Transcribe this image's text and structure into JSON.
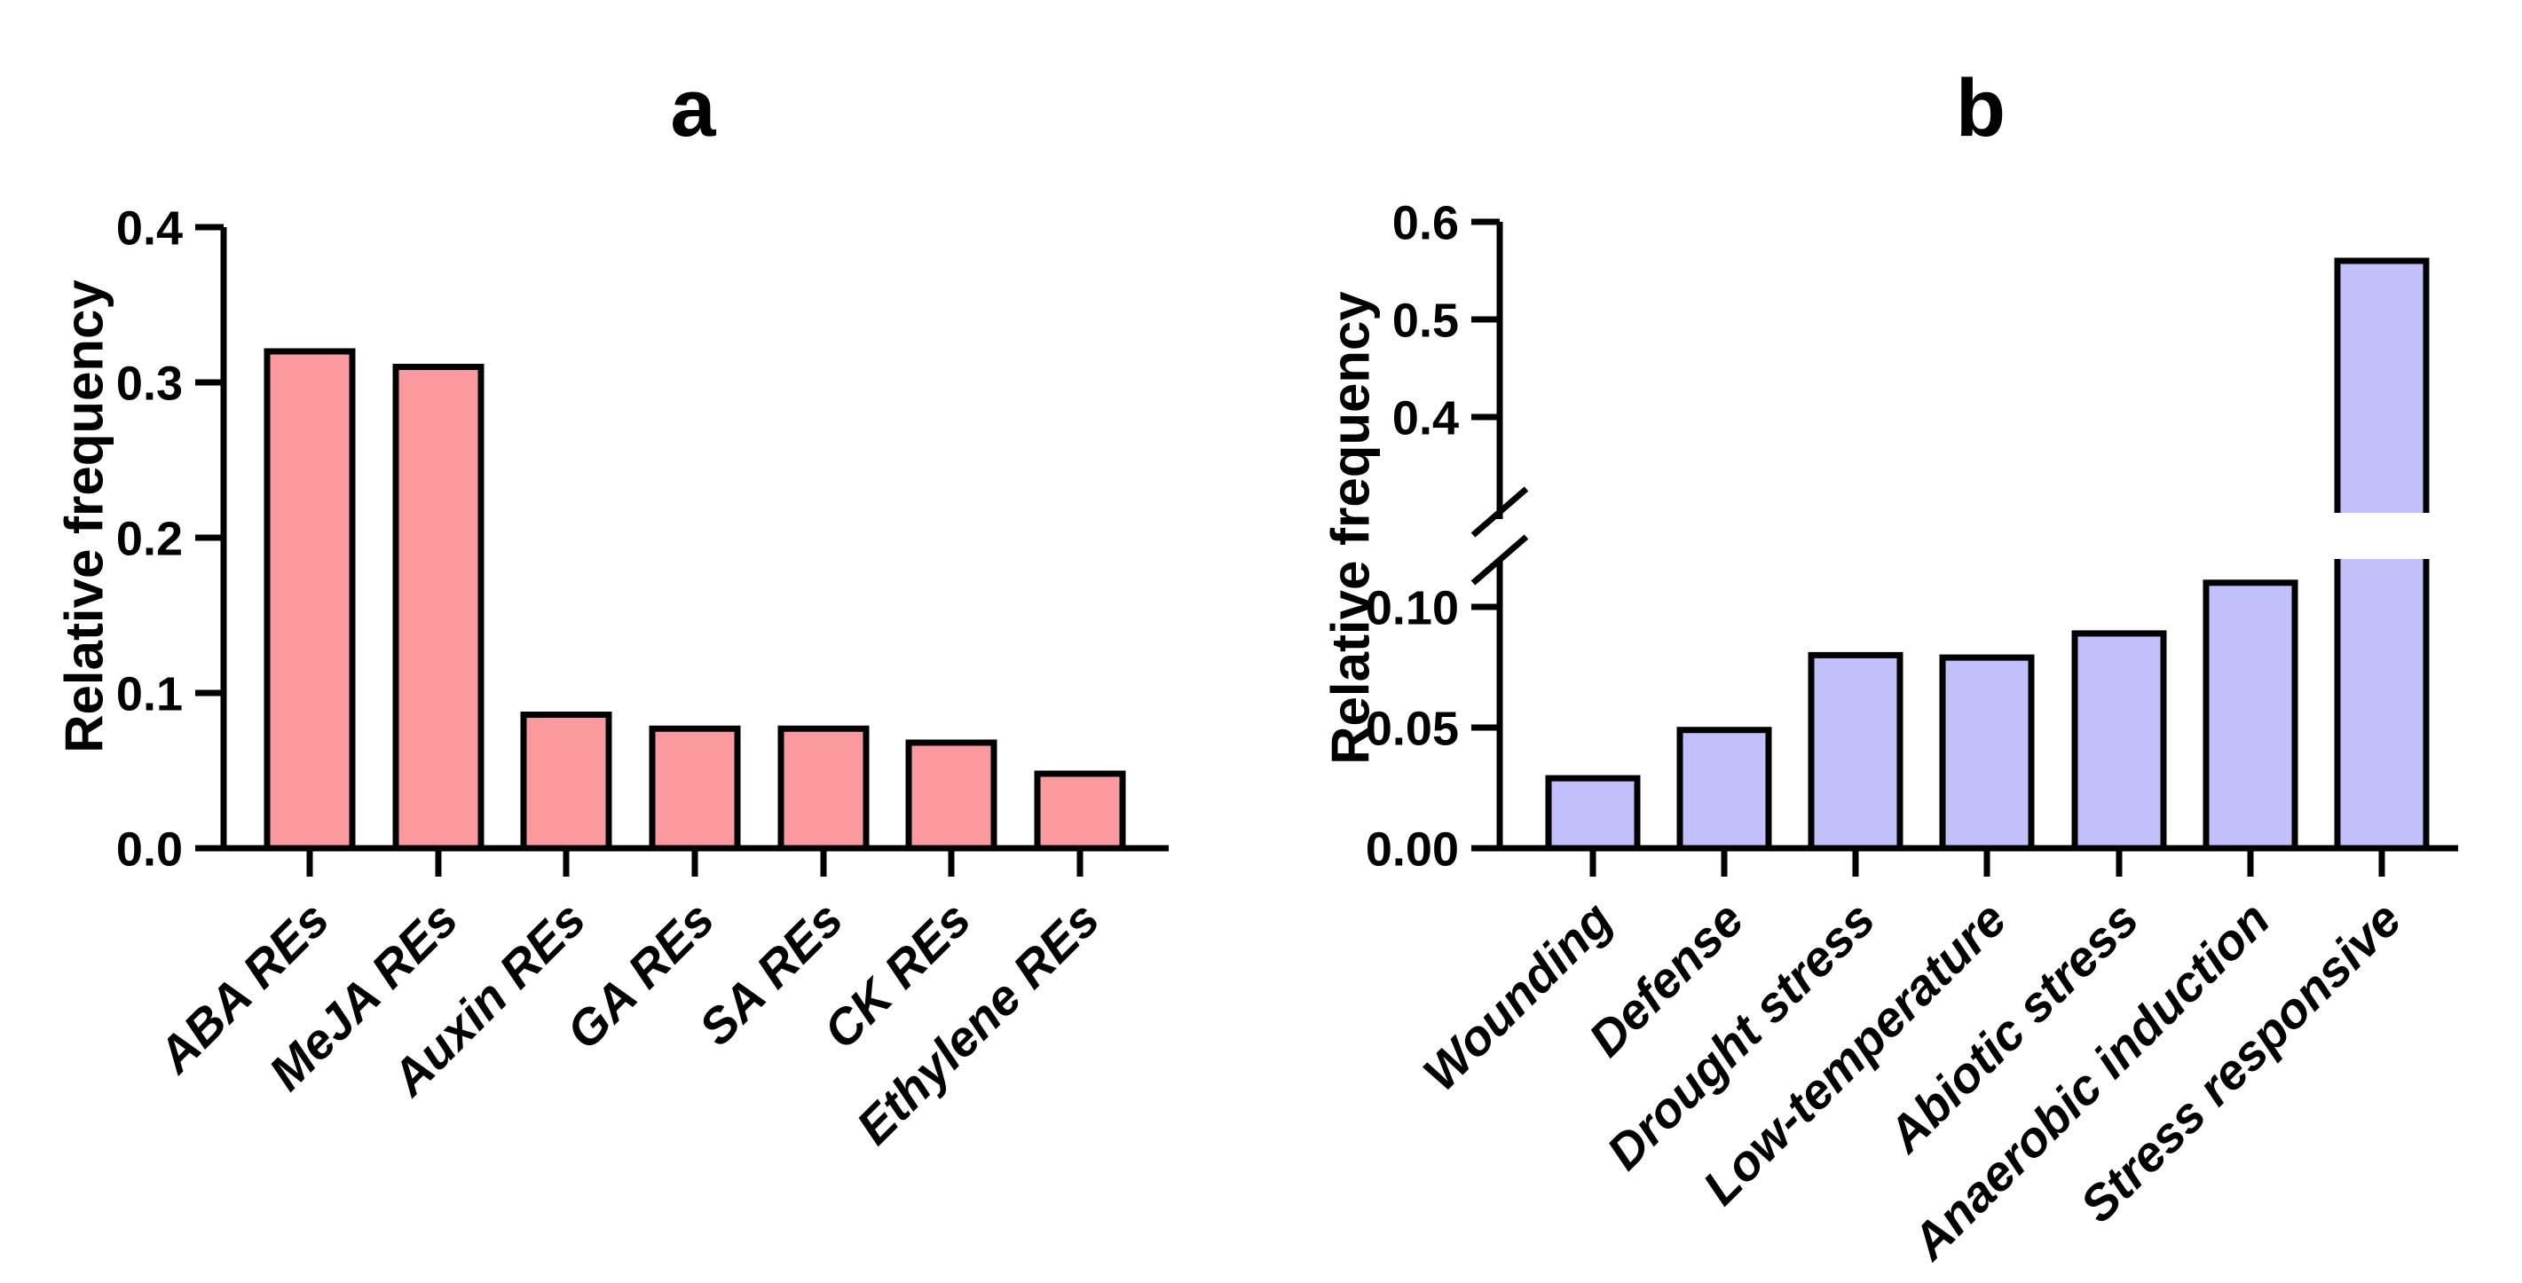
{
  "figure": {
    "background_color": "#ffffff",
    "axis_color": "#000000"
  },
  "chart_data": [
    {
      "type": "bar",
      "panel_label": "a",
      "ylabel": "Relative frequency",
      "xlabel": "",
      "categories": [
        "ABA REs",
        "MeJA REs",
        "Auxin REs",
        "GA REs",
        "SA REs",
        "CK REs",
        "Ethylene REs"
      ],
      "values": [
        0.32,
        0.31,
        0.086,
        0.077,
        0.077,
        0.068,
        0.048
      ],
      "ylim": [
        0,
        0.4
      ],
      "yticks_lower": {
        "values": [
          0,
          0.1,
          0.2,
          0.3,
          0.4
        ],
        "labels": [
          "0.0",
          "0.1",
          "0.2",
          "0.3",
          "0.4"
        ]
      },
      "yticks_upper": null,
      "axis_break": null,
      "bar_fill": "#fa9a9e",
      "bar_stroke": "#000000",
      "grid": false,
      "legend": null
    },
    {
      "type": "bar",
      "panel_label": "b",
      "ylabel": "Relative frequency",
      "xlabel": "",
      "categories": [
        "Wounding",
        "Defense",
        "Drought stress",
        "Low-temperature",
        "Abiotic stress",
        "Anaerobic induction",
        "Stress responsive"
      ],
      "values": [
        0.029,
        0.049,
        0.08,
        0.079,
        0.089,
        0.11,
        0.56
      ],
      "ylim": [
        0,
        0.6
      ],
      "yticks_lower": {
        "values": [
          0,
          0.05,
          0.1
        ],
        "labels": [
          "0.00",
          "0.05",
          "0.10"
        ]
      },
      "yticks_upper": {
        "values": [
          0.4,
          0.5,
          0.6
        ],
        "labels": [
          "0.4",
          "0.5",
          "0.6"
        ]
      },
      "axis_break": {
        "lower_range": [
          0,
          0.12
        ],
        "upper_range": [
          0.3,
          0.6
        ]
      },
      "bar_fill": "#c2c0fa",
      "bar_stroke": "#000000",
      "grid": false,
      "legend": null
    }
  ]
}
